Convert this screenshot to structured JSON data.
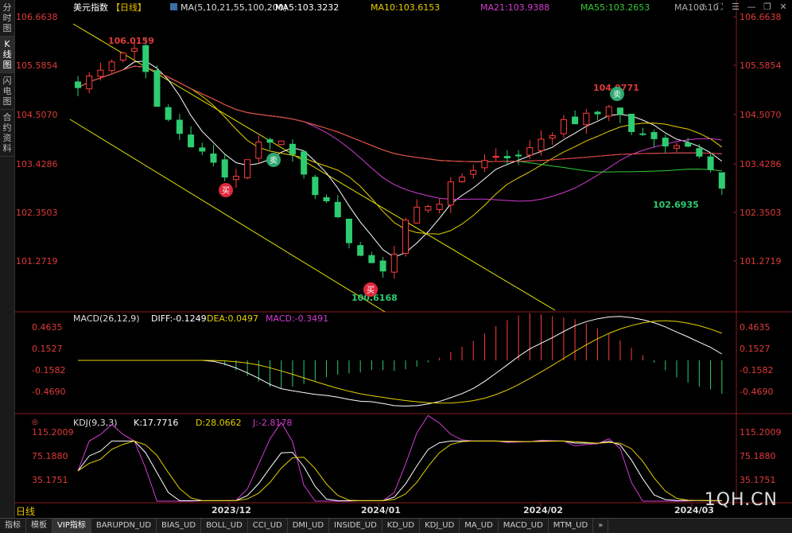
{
  "sidebar": {
    "tabs": [
      {
        "label": "分时图",
        "active": false
      },
      {
        "label": "K线图",
        "active": true
      },
      {
        "label": "闪电图",
        "active": false
      },
      {
        "label": "合约资料",
        "active": false
      }
    ]
  },
  "header": {
    "title": "美元指数",
    "period_badge": "【日线】",
    "ma_config": "MA(5,10,21,55,100,200)",
    "ma_values": [
      {
        "text": "MA5:103.3232",
        "color": "#ffffff"
      },
      {
        "text": "MA10:103.6153",
        "color": "#e6d000"
      },
      {
        "text": "MA21:103.9388",
        "color": "#d23cd2"
      },
      {
        "text": "MA55:103.2653",
        "color": "#33cc33"
      },
      {
        "text": "MA100:10",
        "color": "#aaaaaa"
      }
    ],
    "icons": [
      "warning-icon",
      "fullscreen-icon",
      "list-icon",
      "minimize-icon",
      "restore-icon",
      "close-icon"
    ]
  },
  "price_axis": [
    "106.6638",
    "105.5854",
    "104.5070",
    "103.4286",
    "102.3503",
    "101.2719"
  ],
  "price_labels": {
    "high1": "106.0159",
    "high2": "104.9771",
    "low1": "100.6168",
    "low2": "102.6935",
    "buy": "买",
    "sell": "卖"
  },
  "macd": {
    "title": "MACD(26,12,9)",
    "diff": "DIFF:-0.1249",
    "dea": "DEA:0.0497",
    "macd": "MACD:-0.3491",
    "axis": [
      "0.4635",
      "0.1527",
      "-0.1582",
      "-0.4690"
    ]
  },
  "kdj": {
    "title": "KDJ(9,3,3)",
    "k": "K:17.7716",
    "d": "D:28.0662",
    "j": "J:-2.8178",
    "axis": [
      "115.2009",
      "75.1880",
      "35.1751"
    ]
  },
  "date_axis": [
    "2023/12",
    "2024/01",
    "2024/02",
    "2024/03"
  ],
  "period_label": "日线",
  "watermark": "1QH.CN",
  "bottom_tabs": [
    "指标",
    "模板",
    "VIP指标",
    "BARUPDN_UD",
    "BIAS_UD",
    "BOLL_UD",
    "CCI_UD",
    "DMI_UD",
    "INSIDE_UD",
    "KD_UD",
    "KDJ_UD",
    "MA_UD",
    "MACD_UD",
    "MTM_UD",
    "»"
  ],
  "colors": {
    "up": "#ff3c3c",
    "down": "#2ecc71",
    "ma5": "#ffffff",
    "ma10": "#e6d000",
    "ma21": "#d23cd2",
    "ma55": "#33cc33",
    "ma100": "#aaaaaa",
    "ma200": "#e83a3a",
    "trend": "#e6e600",
    "axis_text": "#e03a3a"
  }
}
